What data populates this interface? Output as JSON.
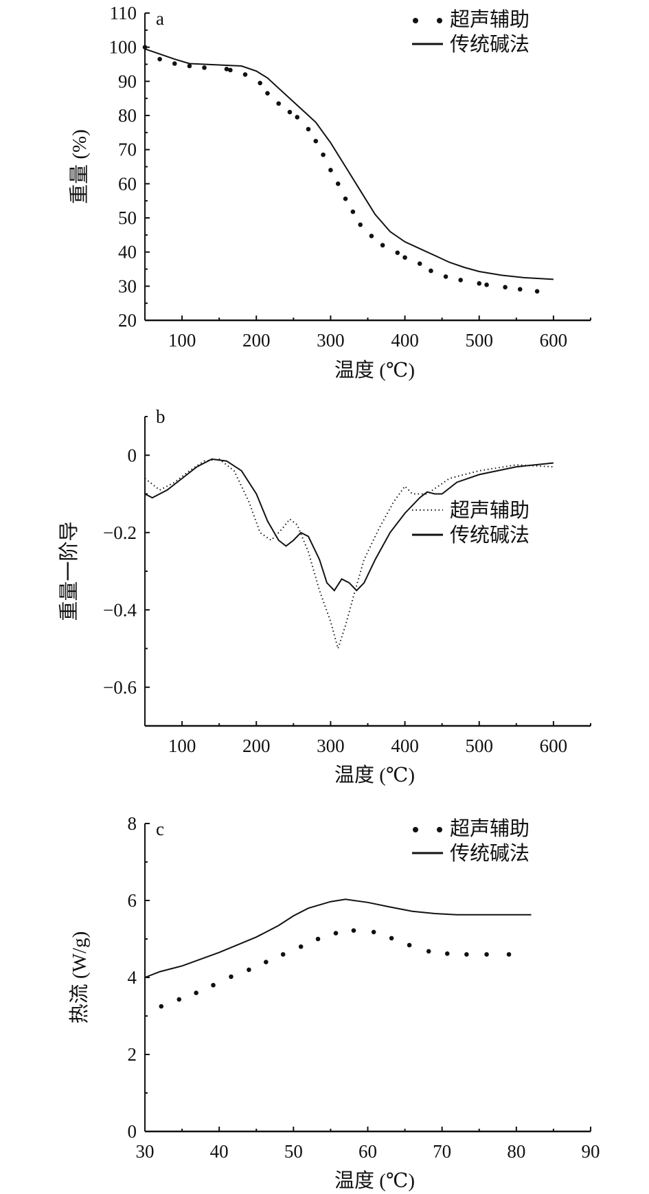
{
  "legend": {
    "ultrasonic": "超声辅助",
    "traditional": "传统碱法"
  },
  "colors": {
    "line": "#111111"
  },
  "chart_data": [
    {
      "type": "line",
      "panel": "a",
      "xlabel": "温度 (℃)",
      "ylabel": "重量 (%)",
      "xlim": [
        50,
        650
      ],
      "ylim": [
        20,
        110
      ],
      "xticks": [
        100,
        200,
        300,
        400,
        500,
        600
      ],
      "yticks": [
        20,
        30,
        40,
        50,
        60,
        70,
        80,
        90,
        100,
        110
      ],
      "legend_position": "top-right",
      "series": [
        {
          "name": "超声辅助",
          "style": "dotted",
          "x": [
            50,
            70,
            90,
            110,
            130,
            160,
            165,
            185,
            205,
            215,
            230,
            245,
            255,
            270,
            280,
            290,
            300,
            310,
            320,
            330,
            340,
            355,
            370,
            390,
            400,
            420,
            435,
            455,
            475,
            500,
            510,
            535,
            555,
            578
          ],
          "y": [
            100,
            96.5,
            95.2,
            94.5,
            94,
            93.6,
            93.3,
            92,
            89.5,
            86.5,
            83.5,
            81,
            79.5,
            76,
            72.5,
            68.5,
            64,
            60,
            55.6,
            51.8,
            48,
            44.7,
            42,
            39.8,
            38.4,
            36.6,
            34.5,
            32.8,
            31.8,
            30.8,
            30.4,
            29.7,
            29.1,
            28.5
          ]
        },
        {
          "name": "传统碱法",
          "style": "solid",
          "x": [
            50,
            70,
            90,
            110,
            150,
            180,
            200,
            215,
            230,
            250,
            265,
            280,
            300,
            320,
            340,
            360,
            380,
            400,
            420,
            440,
            460,
            480,
            500,
            530,
            560,
            600
          ],
          "y": [
            99.5,
            98,
            96.5,
            95.2,
            94.8,
            94.5,
            93,
            91,
            88,
            84,
            81,
            78,
            72,
            65,
            58,
            51,
            46,
            43,
            41,
            39,
            37,
            35.5,
            34.3,
            33.2,
            32.5,
            32
          ]
        }
      ]
    },
    {
      "type": "line",
      "panel": "b",
      "xlabel": "温度 (℃)",
      "ylabel": "重量一阶导",
      "xlim": [
        50,
        650
      ],
      "ylim": [
        -0.7,
        0.1
      ],
      "xticks": [
        100,
        200,
        300,
        400,
        500,
        600
      ],
      "yticks": [
        -0.6,
        -0.4,
        -0.2,
        0
      ],
      "ytick_labels": [
        "−0.6",
        "−0.4",
        "−0.2",
        "0"
      ],
      "legend_position": "right",
      "series": [
        {
          "name": "超声辅助",
          "style": "dotted",
          "x": [
            50,
            70,
            90,
            110,
            130,
            150,
            170,
            190,
            205,
            220,
            235,
            245,
            255,
            270,
            285,
            300,
            310,
            320,
            330,
            345,
            365,
            385,
            400,
            410,
            430,
            460,
            500,
            550,
            600
          ],
          "y": [
            -0.06,
            -0.09,
            -0.07,
            -0.04,
            -0.015,
            -0.01,
            -0.04,
            -0.12,
            -0.2,
            -0.22,
            -0.19,
            -0.165,
            -0.18,
            -0.25,
            -0.35,
            -0.43,
            -0.5,
            -0.44,
            -0.37,
            -0.27,
            -0.19,
            -0.12,
            -0.08,
            -0.1,
            -0.1,
            -0.06,
            -0.04,
            -0.025,
            -0.03
          ]
        },
        {
          "name": "传统碱法",
          "style": "solid",
          "x": [
            50,
            60,
            80,
            100,
            120,
            140,
            160,
            180,
            200,
            215,
            230,
            240,
            250,
            260,
            270,
            285,
            295,
            305,
            315,
            325,
            335,
            345,
            360,
            380,
            400,
            420,
            430,
            440,
            450,
            470,
            500,
            550,
            600
          ],
          "y": [
            -0.1,
            -0.11,
            -0.09,
            -0.06,
            -0.03,
            -0.01,
            -0.015,
            -0.04,
            -0.1,
            -0.17,
            -0.22,
            -0.235,
            -0.22,
            -0.2,
            -0.21,
            -0.27,
            -0.33,
            -0.35,
            -0.32,
            -0.33,
            -0.35,
            -0.33,
            -0.27,
            -0.2,
            -0.15,
            -0.11,
            -0.095,
            -0.1,
            -0.1,
            -0.07,
            -0.05,
            -0.03,
            -0.02
          ]
        }
      ]
    },
    {
      "type": "line",
      "panel": "c",
      "xlabel": "温度 (℃)",
      "ylabel": "热流 (W/g)",
      "xlim": [
        30,
        90
      ],
      "ylim": [
        0,
        8
      ],
      "xticks": [
        30,
        40,
        50,
        60,
        70,
        80,
        90
      ],
      "yticks": [
        0,
        2,
        4,
        6,
        8
      ],
      "legend_position": "top-right",
      "series": [
        {
          "name": "超声辅助",
          "style": "dotted",
          "x": [
            32.2,
            34.6,
            36.9,
            39.2,
            41.6,
            44,
            46.3,
            48.6,
            51,
            53.3,
            55.7,
            58.1,
            60.8,
            63.2,
            65.6,
            68.2,
            70.7,
            73.3,
            76,
            79
          ],
          "y": [
            3.25,
            3.43,
            3.6,
            3.8,
            4.02,
            4.2,
            4.4,
            4.6,
            4.8,
            5.0,
            5.15,
            5.22,
            5.18,
            5.02,
            4.84,
            4.68,
            4.62,
            4.6,
            4.6,
            4.6
          ]
        },
        {
          "name": "传统碱法",
          "style": "solid",
          "x": [
            30,
            32,
            35,
            40,
            45,
            48,
            50,
            52,
            55,
            57,
            60,
            63,
            66,
            69,
            72,
            82
          ],
          "y": [
            4.0,
            4.15,
            4.3,
            4.65,
            5.05,
            5.35,
            5.6,
            5.8,
            5.97,
            6.03,
            5.95,
            5.83,
            5.72,
            5.66,
            5.63,
            5.63
          ]
        }
      ]
    }
  ]
}
